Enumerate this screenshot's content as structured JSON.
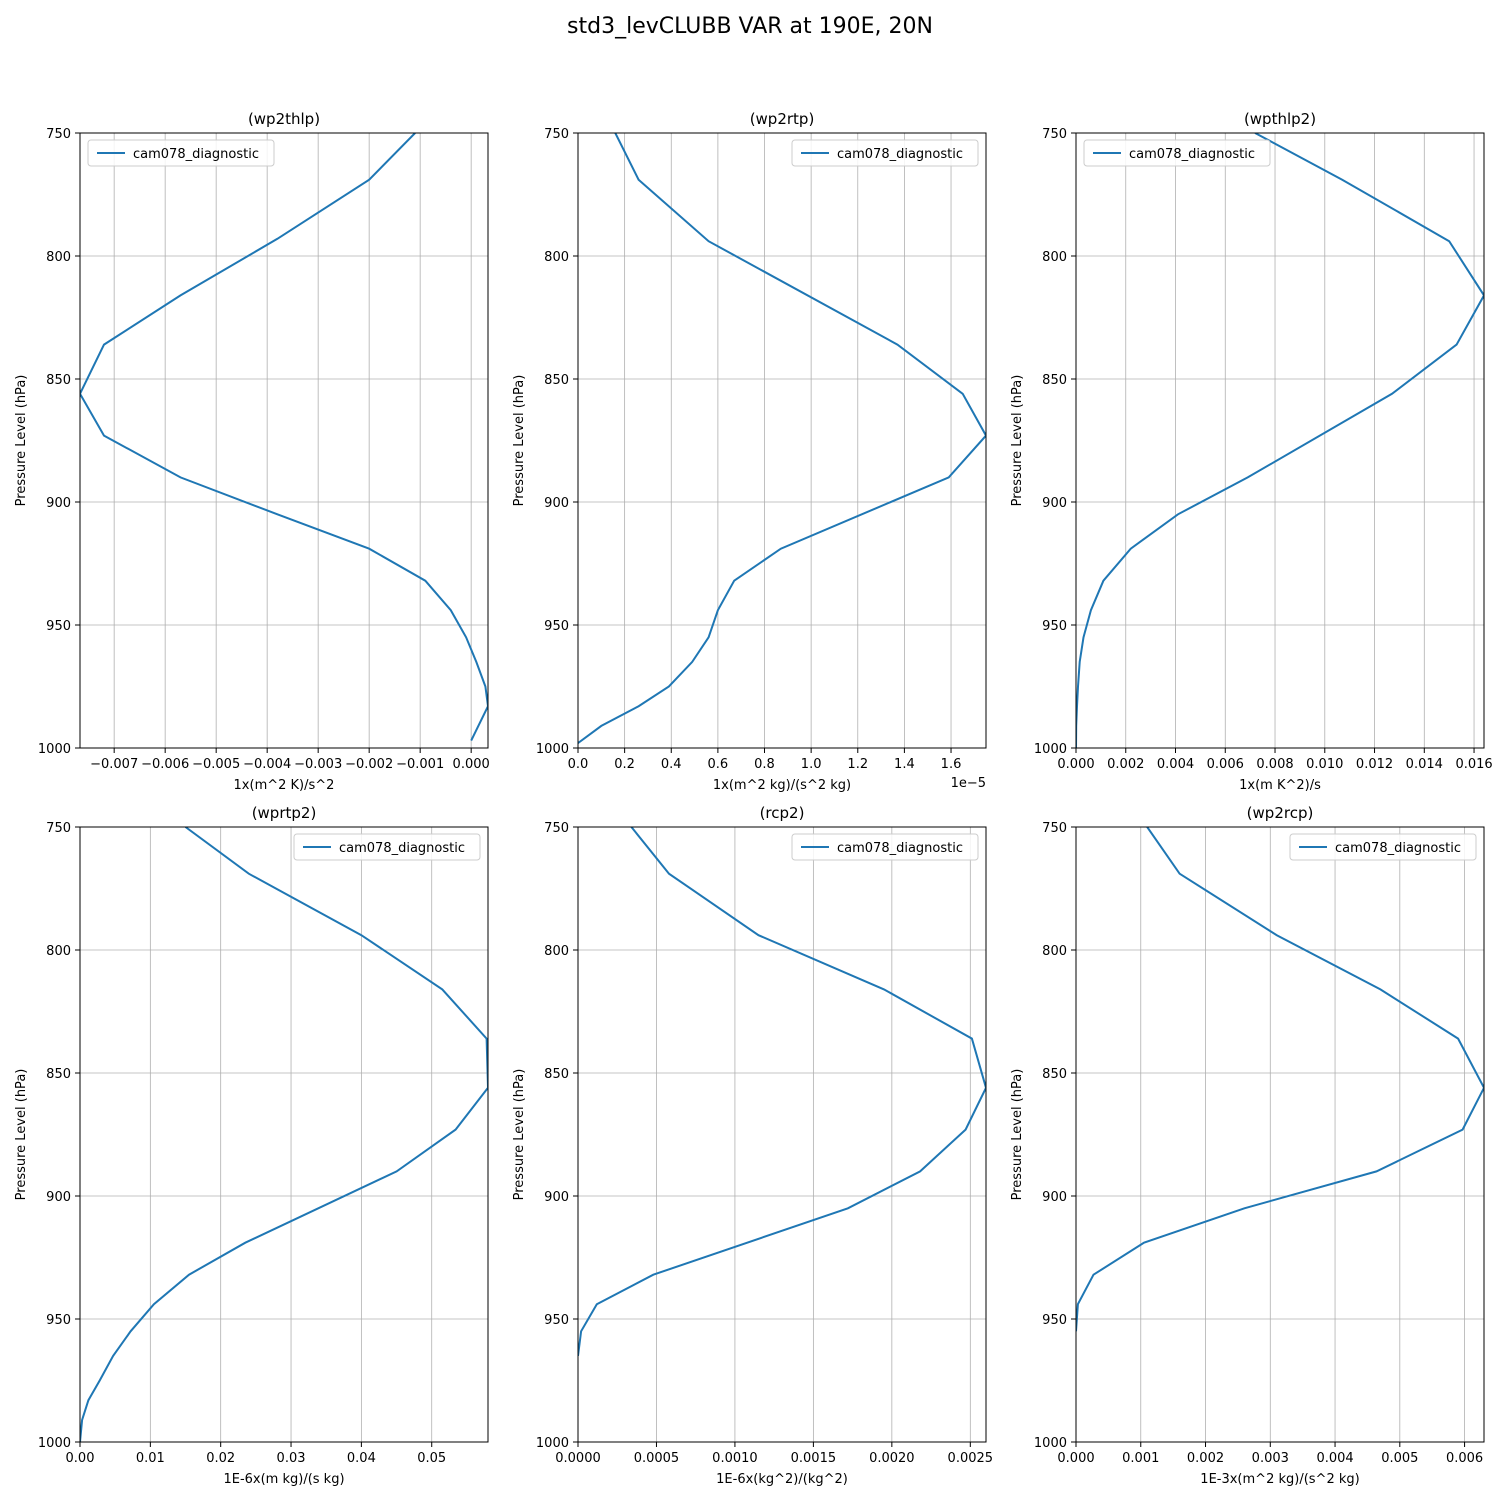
{
  "figure": {
    "title": "std3_levCLUBB VAR at 190E, 20N"
  },
  "colors": {
    "line": "#1f77b4",
    "grid": "#b0b0b0",
    "axis": "#000000"
  },
  "chart_data": [
    {
      "type": "line",
      "title": "(wp2thlp)",
      "xlabel": "1x(m^2 K)/s^2",
      "ylabel": "Pressure Level (hPa)",
      "xlim": [
        -0.00767,
        0.00033
      ],
      "ylim": [
        1000,
        750
      ],
      "offset_text": "",
      "xticks": [
        -0.007,
        -0.006,
        -0.005,
        -0.004,
        -0.003,
        -0.002,
        -0.001,
        0.0
      ],
      "xtick_labels": [
        "−0.007",
        "−0.006",
        "−0.005",
        "−0.004",
        "−0.003",
        "−0.002",
        "−0.001",
        "0.000"
      ],
      "yticks": [
        750,
        800,
        850,
        900,
        950,
        1000
      ],
      "ytick_labels": [
        "750",
        "800",
        "850",
        "900",
        "950",
        "1000"
      ],
      "grid": true,
      "legend": {
        "position": "upper-left"
      },
      "series": [
        {
          "name": "cam078_diagnostic",
          "x": [
            -0.0011,
            -0.002,
            -0.0038,
            -0.0057,
            -0.0072,
            -0.00767,
            -0.0072,
            -0.0057,
            -0.0038,
            -0.002,
            -0.0009,
            -0.0004,
            -0.0001,
            0.0001,
            0.00028,
            0.00033,
            0.0
          ],
          "y": [
            750,
            769,
            793,
            816,
            836,
            856,
            873,
            890,
            905,
            919,
            932,
            944,
            955,
            965,
            975,
            983,
            997
          ]
        }
      ]
    },
    {
      "type": "line",
      "title": "(wp2rtp)",
      "xlabel": "1x(m^2 kg)/(s^2 kg)",
      "ylabel": "Pressure Level (hPa)",
      "xlim": [
        0.0,
        1.75
      ],
      "ylim": [
        1000,
        750
      ],
      "offset_text": "1e−5",
      "xticks": [
        0.0,
        0.2,
        0.4,
        0.6,
        0.8,
        1.0,
        1.2,
        1.4,
        1.6
      ],
      "xtick_labels": [
        "0.0",
        "0.2",
        "0.4",
        "0.6",
        "0.8",
        "1.0",
        "1.2",
        "1.4",
        "1.6"
      ],
      "yticks": [
        750,
        800,
        850,
        900,
        950,
        1000
      ],
      "ytick_labels": [
        "750",
        "800",
        "850",
        "900",
        "950",
        "1000"
      ],
      "grid": true,
      "legend": {
        "position": "upper-right"
      },
      "series": [
        {
          "name": "cam078_diagnostic",
          "x": [
            0.16,
            0.26,
            0.56,
            1.37,
            1.65,
            1.75,
            1.59,
            0.87,
            0.67,
            0.6,
            0.56,
            0.49,
            0.39,
            0.26,
            0.1,
            0.0
          ],
          "y": [
            750,
            769,
            794,
            836,
            856,
            873,
            890,
            919,
            932,
            944,
            955,
            965,
            975,
            983,
            991,
            998
          ]
        }
      ]
    },
    {
      "type": "line",
      "title": "(wpthlp2)",
      "xlabel": "1x(m K^2)/s",
      "ylabel": "Pressure Level (hPa)",
      "xlim": [
        0.0,
        0.0164
      ],
      "ylim": [
        1000,
        750
      ],
      "offset_text": "",
      "xticks": [
        0.0,
        0.002,
        0.004,
        0.006,
        0.008,
        0.01,
        0.012,
        0.014,
        0.016
      ],
      "xtick_labels": [
        "0.000",
        "0.002",
        "0.004",
        "0.006",
        "0.008",
        "0.010",
        "0.012",
        "0.014",
        "0.016"
      ],
      "yticks": [
        750,
        800,
        850,
        900,
        950,
        1000
      ],
      "ytick_labels": [
        "750",
        "800",
        "850",
        "900",
        "950",
        "1000"
      ],
      "grid": true,
      "legend": {
        "position": "upper-left"
      },
      "series": [
        {
          "name": "cam078_diagnostic",
          "x": [
            0.0072,
            0.0107,
            0.015,
            0.0164,
            0.0153,
            0.0127,
            0.0069,
            0.0041,
            0.0022,
            0.0011,
            0.0006,
            0.0003,
            0.00015,
            8e-05,
            4e-05,
            1e-05,
            0.0
          ],
          "y": [
            750,
            769,
            794,
            816,
            836,
            856,
            890,
            905,
            919,
            932,
            944,
            955,
            965,
            975,
            983,
            991,
            1000
          ]
        }
      ]
    },
    {
      "type": "line",
      "title": "(wprtp2)",
      "xlabel": "1E-6x(m kg)/(s kg)",
      "ylabel": "Pressure Level (hPa)",
      "xlim": [
        0.0,
        0.058
      ],
      "ylim": [
        1000,
        750
      ],
      "offset_text": "",
      "xticks": [
        0.0,
        0.01,
        0.02,
        0.03,
        0.04,
        0.05
      ],
      "xtick_labels": [
        "0.00",
        "0.01",
        "0.02",
        "0.03",
        "0.04",
        "0.05"
      ],
      "yticks": [
        750,
        800,
        850,
        900,
        950,
        1000
      ],
      "ytick_labels": [
        "750",
        "800",
        "850",
        "900",
        "950",
        "1000"
      ],
      "grid": true,
      "legend": {
        "position": "upper-right"
      },
      "series": [
        {
          "name": "cam078_diagnostic",
          "x": [
            0.015,
            0.024,
            0.04,
            0.0515,
            0.0578,
            0.058,
            0.0534,
            0.045,
            0.0235,
            0.0155,
            0.0105,
            0.0072,
            0.0047,
            0.0028,
            0.0012,
            0.0003,
            0.0
          ],
          "y": [
            750,
            769,
            794,
            816,
            836,
            856,
            873,
            890,
            919,
            932,
            944,
            955,
            965,
            975,
            983,
            991,
            1000
          ]
        }
      ]
    },
    {
      "type": "line",
      "title": "(rcp2)",
      "xlabel": "1E-6x(kg^2)/(kg^2)",
      "ylabel": "Pressure Level (hPa)",
      "xlim": [
        0.0,
        0.0026
      ],
      "ylim": [
        1000,
        750
      ],
      "offset_text": "",
      "xticks": [
        0.0,
        0.0005,
        0.001,
        0.0015,
        0.002,
        0.0025
      ],
      "xtick_labels": [
        "0.0000",
        "0.0005",
        "0.0010",
        "0.0015",
        "0.0020",
        "0.0025"
      ],
      "yticks": [
        750,
        800,
        850,
        900,
        950,
        1000
      ],
      "ytick_labels": [
        "750",
        "800",
        "850",
        "900",
        "950",
        "1000"
      ],
      "grid": true,
      "legend": {
        "position": "upper-right"
      },
      "series": [
        {
          "name": "cam078_diagnostic",
          "x": [
            0.00034,
            0.00058,
            0.00115,
            0.00195,
            0.00251,
            0.0026,
            0.00247,
            0.00218,
            0.00172,
            0.00048,
            0.00012,
            2e-05,
            0.0
          ],
          "y": [
            750,
            769,
            794,
            816,
            836,
            856,
            873,
            890,
            905,
            932,
            944,
            955,
            965
          ]
        }
      ]
    },
    {
      "type": "line",
      "title": "(wp2rcp)",
      "xlabel": "1E-3x(m^2 kg)/(s^2 kg)",
      "ylabel": "Pressure Level (hPa)",
      "xlim": [
        0.0,
        0.0063
      ],
      "ylim": [
        1000,
        750
      ],
      "offset_text": "",
      "xticks": [
        0.0,
        0.001,
        0.002,
        0.003,
        0.004,
        0.005,
        0.006
      ],
      "xtick_labels": [
        "0.000",
        "0.001",
        "0.002",
        "0.003",
        "0.004",
        "0.005",
        "0.006"
      ],
      "yticks": [
        750,
        800,
        850,
        900,
        950,
        1000
      ],
      "ytick_labels": [
        "750",
        "800",
        "850",
        "900",
        "950",
        "1000"
      ],
      "grid": true,
      "legend": {
        "position": "upper-right"
      },
      "series": [
        {
          "name": "cam078_diagnostic",
          "x": [
            0.0011,
            0.0016,
            0.0031,
            0.0047,
            0.0059,
            0.0063,
            0.00597,
            0.00464,
            0.0026,
            0.00105,
            0.00027,
            3e-05,
            0.0
          ],
          "y": [
            750,
            769,
            794,
            816,
            836,
            856,
            873,
            890,
            905,
            919,
            932,
            944,
            955
          ]
        }
      ]
    }
  ]
}
